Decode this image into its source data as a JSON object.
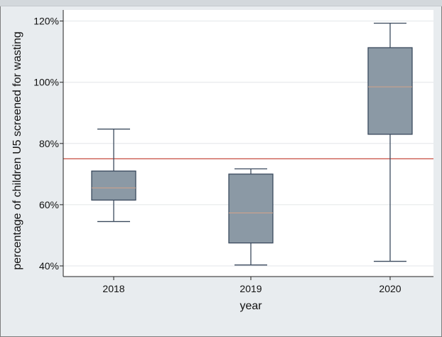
{
  "chart_data": {
    "type": "box",
    "title": "",
    "xlabel": "year",
    "ylabel": "percentage of children U5 screened for wasting",
    "ylim": [
      38,
      124
    ],
    "yticks": [
      40,
      60,
      80,
      100,
      120
    ],
    "ytick_labels": [
      "40%",
      "60%",
      "80%",
      "100%",
      "120%"
    ],
    "categories": [
      "2018",
      "2019",
      "2020"
    ],
    "boxes": [
      {
        "category": "2018",
        "whisker_low": 54.5,
        "q1": 61.5,
        "median": 65.5,
        "q3": 71.0,
        "whisker_high": 84.7
      },
      {
        "category": "2019",
        "whisker_low": 40.3,
        "q1": 47.5,
        "median": 57.3,
        "q3": 70.0,
        "whisker_high": 71.7
      },
      {
        "category": "2020",
        "whisker_low": 41.5,
        "q1": 83.0,
        "median": 98.5,
        "q3": 111.3,
        "whisker_high": 119.3
      }
    ],
    "reference_line": {
      "value": 75,
      "color": "#c0392b"
    },
    "box_color": "#8b99a5",
    "median_color": "#d4a389",
    "grid": true
  }
}
